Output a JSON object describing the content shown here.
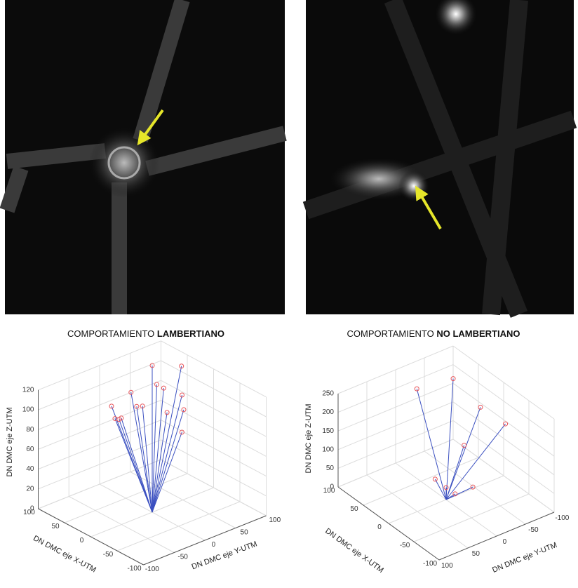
{
  "chart_data": [
    {
      "type": "scatter3d",
      "title": "COMPORTAMIENTO",
      "title_emphasis": "LAMBERTIANO",
      "xlabel": "DN DMC eje X-UTM",
      "ylabel": "DN DMC eje Y-UTM",
      "zlabel": "DN DMC eje Z-UTM",
      "xlim": [
        -100,
        100
      ],
      "ylim": [
        -100,
        100
      ],
      "zlim": [
        0,
        120
      ],
      "xticks": [
        -100,
        -50,
        0,
        50,
        100
      ],
      "yticks": [
        -100,
        -50,
        0,
        50,
        100
      ],
      "zticks": [
        0,
        20,
        40,
        60,
        80,
        100,
        120
      ],
      "grid": true,
      "line_color": "#3a4fc0",
      "marker_color": "#e8545a",
      "origin": {
        "x": 0,
        "y": 0,
        "z": 0
      },
      "x": [
        63,
        40,
        80,
        59,
        54,
        39,
        96,
        75,
        71,
        50,
        38,
        94,
        91,
        88,
        38
      ],
      "y": [
        54,
        82,
        34,
        58,
        65,
        82,
        16,
        39,
        45,
        67,
        84,
        20,
        24,
        25,
        81
      ],
      "z": [
        117,
        116,
        90,
        98,
        94,
        87,
        76,
        76,
        76,
        70,
        72,
        63,
        62,
        64,
        50
      ]
    },
    {
      "type": "scatter3d",
      "title": "COMPORTAMIENTO",
      "title_emphasis": "NO LAMBERTIANO",
      "xlabel": "DN DMC eje X-UTM",
      "ylabel": "DN DMC eje Y-UTM",
      "zlabel": "DN DMC eje Z-UTM",
      "xlim": [
        -100,
        100
      ],
      "ylim": [
        -100,
        100
      ],
      "zlim": [
        0,
        250
      ],
      "xticks": [
        -100,
        -50,
        0,
        50,
        100
      ],
      "yticks": [
        -100,
        -50,
        0,
        50,
        100
      ],
      "zticks": [
        0,
        50,
        100,
        150,
        200,
        250
      ],
      "grid": true,
      "line_color": "#3a4fc0",
      "marker_color": "#e8545a",
      "origin": {
        "x": 0,
        "y": 0,
        "z": 0
      },
      "x": [
        43,
        58,
        6,
        -15,
        10,
        24,
        8,
        -3,
        -4
      ],
      "y": [
        -50,
        0,
        -65,
        -90,
        -40,
        -2,
        -7,
        -13,
        -43
      ],
      "z": [
        250,
        240,
        200,
        160,
        110,
        30,
        20,
        10,
        10
      ]
    }
  ]
}
